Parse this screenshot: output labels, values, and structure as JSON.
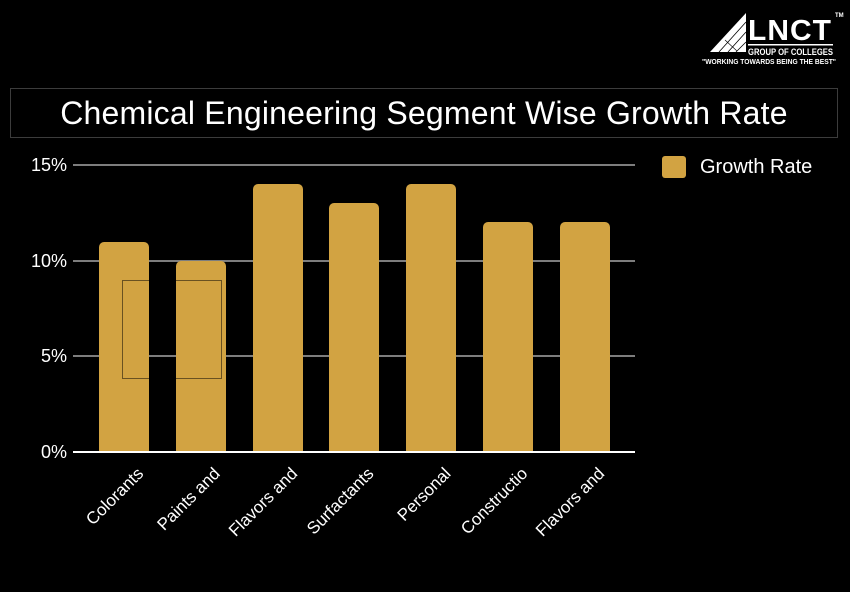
{
  "logo": {
    "brand": "LNCT",
    "trademark": "TM",
    "subtitle": "GROUP OF COLLEGES",
    "tagline": "\"WORKING TOWARDS BEING THE BEST\""
  },
  "title": "Chemical Engineering Segment Wise Growth Rate",
  "legend": {
    "label": "Growth Rate"
  },
  "colors": {
    "bar_gold": "#D2A342",
    "gridline_gray": "#7D7D7D",
    "axis_white": "#FFFFFF",
    "background": "#000000",
    "text": "#FFFFFF"
  },
  "chart_data": {
    "type": "bar",
    "title": "Chemical Engineering Segment Wise Growth Rate",
    "categories": [
      "Colorants",
      "Paints and",
      "Flavors and",
      "Surfactants",
      "Personal",
      "Constructio",
      "Flavors and"
    ],
    "series": [
      {
        "name": "Growth Rate",
        "values": [
          11,
          10,
          14,
          13,
          14,
          12,
          12
        ]
      }
    ],
    "value_unit": "%",
    "ylim": [
      0,
      15
    ],
    "yticks": [
      "0%",
      "5%",
      "10%",
      "15%"
    ],
    "grid": true,
    "legend_position": "top-right",
    "bar_color": "#D2A342",
    "xlabel_rotation_deg": -45
  }
}
